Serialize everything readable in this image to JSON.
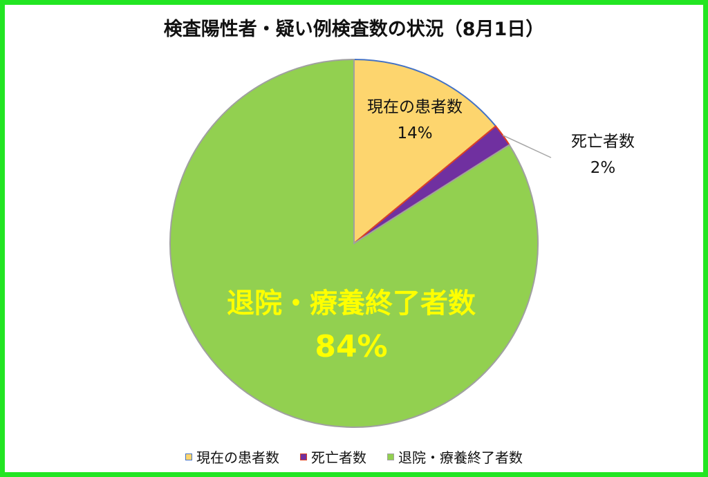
{
  "chart_data": {
    "type": "pie",
    "title": "検査陽性者・疑い例検査数の状況（8月1日）",
    "slices": [
      {
        "label": "現在の患者数",
        "percent_label": "14%",
        "value": 14,
        "color": "#fdd56e",
        "border": "#4472c4",
        "label_color": "#111111"
      },
      {
        "label": "死亡者数",
        "percent_label": "2%",
        "value": 2,
        "color": "#7030a0",
        "border": "#e04020",
        "label_color": "#111111"
      },
      {
        "label": "退院・療養終了者数",
        "percent_label": "84%",
        "value": 84,
        "color": "#92d050",
        "border": "#a0a0a0",
        "label_color": "#ffff00"
      }
    ],
    "legend_position": "bottom"
  }
}
